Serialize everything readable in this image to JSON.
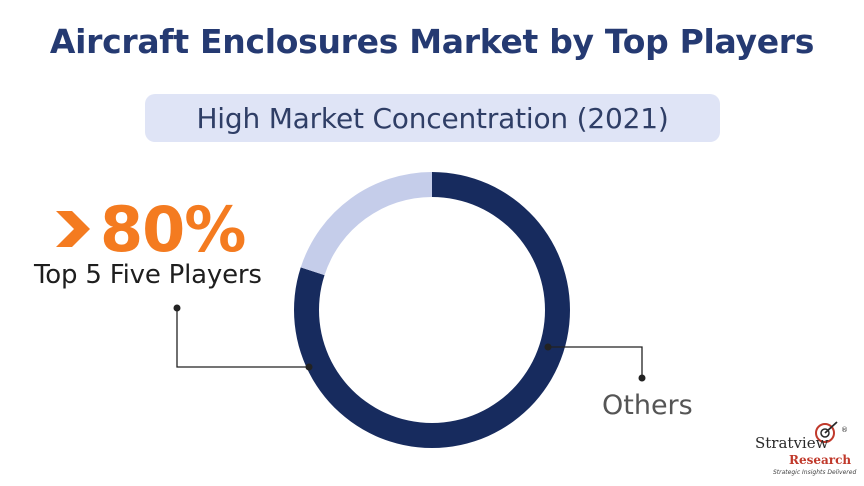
{
  "header": {
    "title": "Aircraft Enclosures Market by Top Players",
    "subtitle": "High Market Concentration (2021)"
  },
  "highlight": {
    "value": "80%",
    "description": "Top 5 Five Players"
  },
  "colors": {
    "title": "#253a72",
    "accent": "#f47b20",
    "top_players": "#172b5e",
    "others": "#c5cdea",
    "pill": "#dfe4f6"
  },
  "logo": {
    "name": "Stratview",
    "sub": "Research",
    "tagline": "Strategic Insights Delivered",
    "mark": "®"
  },
  "chart_data": {
    "type": "pie",
    "style": "donut",
    "slices": [
      {
        "label": "Top 5 Five Players",
        "value": 80
      },
      {
        "label": "Others",
        "value": 20
      }
    ],
    "legend": "none"
  }
}
